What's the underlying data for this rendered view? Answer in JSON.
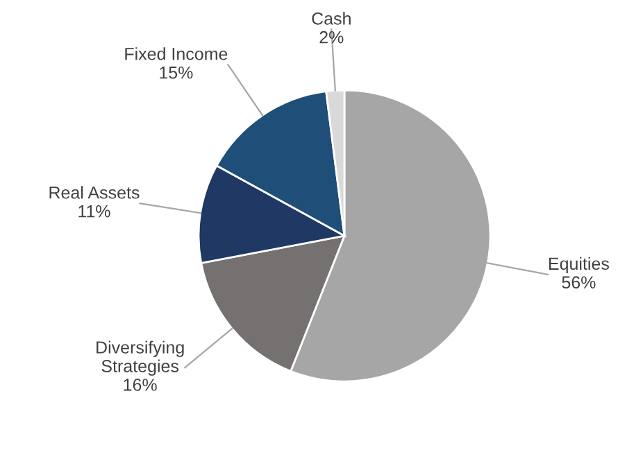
{
  "chart_data": {
    "type": "pie",
    "categories": [
      "Equities",
      "Diversifying Strategies",
      "Real Assets",
      "Fixed Income",
      "Cash"
    ],
    "values": [
      56,
      16,
      11,
      15,
      2
    ],
    "colors": [
      "#a6a6a6",
      "#767171",
      "#1f3864",
      "#1f4e79",
      "#d9d9d9"
    ],
    "value_labels": [
      "56%",
      "16%",
      "11%",
      "15%",
      "2%"
    ],
    "legend": false
  }
}
